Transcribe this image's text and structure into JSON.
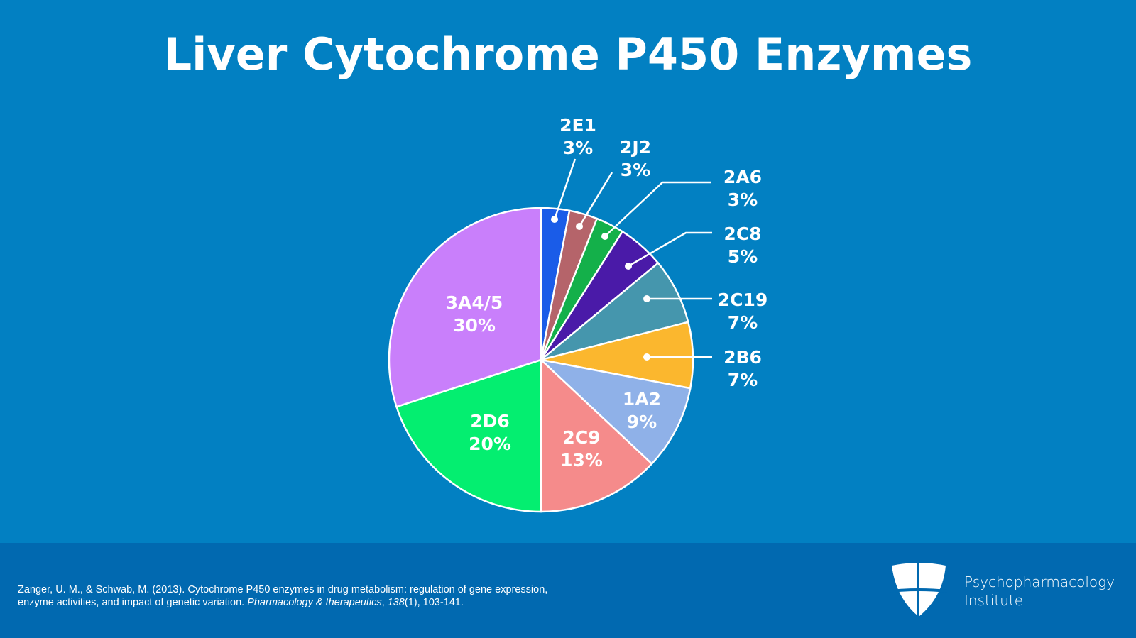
{
  "chart_data": {
    "type": "pie",
    "title": "Liver Cytochrome P450 Enzymes",
    "start": "top",
    "direction": "clockwise",
    "slices": [
      {
        "label": "2E1",
        "value": 3,
        "value_label": "3%",
        "color": "#1a5ce8"
      },
      {
        "label": "2J2",
        "value": 3,
        "value_label": "3%",
        "color": "#b5646a"
      },
      {
        "label": "2A6",
        "value": 3,
        "value_label": "3%",
        "color": "#14b04a"
      },
      {
        "label": "2C8",
        "value": 5,
        "value_label": "5%",
        "color": "#4a1aa8"
      },
      {
        "label": "2C19",
        "value": 7,
        "value_label": "7%",
        "color": "#4596ad"
      },
      {
        "label": "2B6",
        "value": 7,
        "value_label": "7%",
        "color": "#fbb72e"
      },
      {
        "label": "1A2",
        "value": 9,
        "value_label": "9%",
        "color": "#8fb1e8"
      },
      {
        "label": "2C9",
        "value": 13,
        "value_label": "13%",
        "color": "#f58b8b"
      },
      {
        "label": "2D6",
        "value": 20,
        "value_label": "20%",
        "color": "#04ee70"
      },
      {
        "label": "3A4/5",
        "value": 30,
        "value_label": "30%",
        "color": "#c97ffb"
      }
    ]
  },
  "colors": {
    "background": "#0280c2",
    "footer": "#0169b0"
  },
  "footer": {
    "citation_line1": "Zanger, U. M., & Schwab, M. (2013). Cytochrome P450 enzymes in drug metabolism: regulation of gene expression,",
    "citation_line2_a": "enzyme activities, and impact of genetic variation. ",
    "citation_journal": "Pharmacology & therapeutics",
    "citation_sep": ", ",
    "citation_volume": "138",
    "citation_rest": "(1), 103-141.",
    "org_line1": "Psychopharmacology",
    "org_line2": "Institute",
    "logo_icon": "shield-cross-icon"
  }
}
